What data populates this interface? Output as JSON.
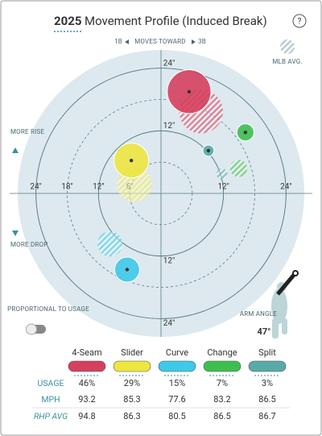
{
  "chart_data": {
    "type": "movement",
    "title_year": "2025",
    "title": "Movement Profile (Induced Break)",
    "direction_left": "1B",
    "direction_text": "MOVES TOWARD",
    "direction_right": "3B",
    "mlb_avg_label": "MLB AVG.",
    "rise_label": "MORE RISE",
    "drop_label": "MORE DROP",
    "toggle_label": "PROPORTIONAL TO USAGE",
    "arm_angle_label": "ARM ANGLE",
    "arm_angle": "47°",
    "xlim": [
      -27.5,
      27.5
    ],
    "ylim": [
      -27.5,
      27.5
    ],
    "xticks": [
      {
        "value": -24,
        "label": "24\""
      },
      {
        "value": -18,
        "label": "18\""
      },
      {
        "value": -12,
        "label": "12\""
      },
      {
        "value": -6,
        "label": "6\""
      },
      {
        "value": 12,
        "label": "12\""
      },
      {
        "value": 24,
        "label": "24\""
      }
    ],
    "yticks": [
      {
        "value": 24,
        "label": "24\""
      },
      {
        "value": 12,
        "label": "12\""
      },
      {
        "value": -12,
        "label": "12\""
      },
      {
        "value": -24,
        "label": "24\""
      }
    ],
    "row_labels": [
      "USAGE",
      "MPH",
      "RHP AVG"
    ],
    "series": [
      {
        "name": "4-Seam",
        "color": "#d5405e",
        "x": 5.4,
        "y": 19.5,
        "mlb_x": 7.7,
        "mlb_y": 15.7,
        "usage": 46,
        "usage_label": "46%",
        "mph": 93.2,
        "rhp_avg": 94.8
      },
      {
        "name": "Slider",
        "color": "#ece63f",
        "x": -5.7,
        "y": 6.3,
        "mlb_x": -5.1,
        "mlb_y": 1.7,
        "usage": 29,
        "usage_label": "29%",
        "mph": 85.3,
        "rhp_avg": 86.3
      },
      {
        "name": "Curve",
        "color": "#3ec9e8",
        "x": -6.5,
        "y": -14.6,
        "mlb_x": -9.8,
        "mlb_y": -9.7,
        "usage": 15,
        "usage_label": "15%",
        "mph": 77.6,
        "rhp_avg": 80.5
      },
      {
        "name": "Change",
        "color": "#3fbe50",
        "x": 16.2,
        "y": 11.7,
        "mlb_x": 14.9,
        "mlb_y": 4.8,
        "usage": 7,
        "usage_label": "7%",
        "mph": 83.2,
        "rhp_avg": 86.5
      },
      {
        "name": "Split",
        "color": "#58aaa7",
        "x": 9.1,
        "y": 8.2,
        "mlb_x": 11.7,
        "mlb_y": 3.7,
        "usage": 3,
        "usage_label": "3%",
        "mph": 86.5,
        "rhp_avg": 86.7
      }
    ]
  }
}
